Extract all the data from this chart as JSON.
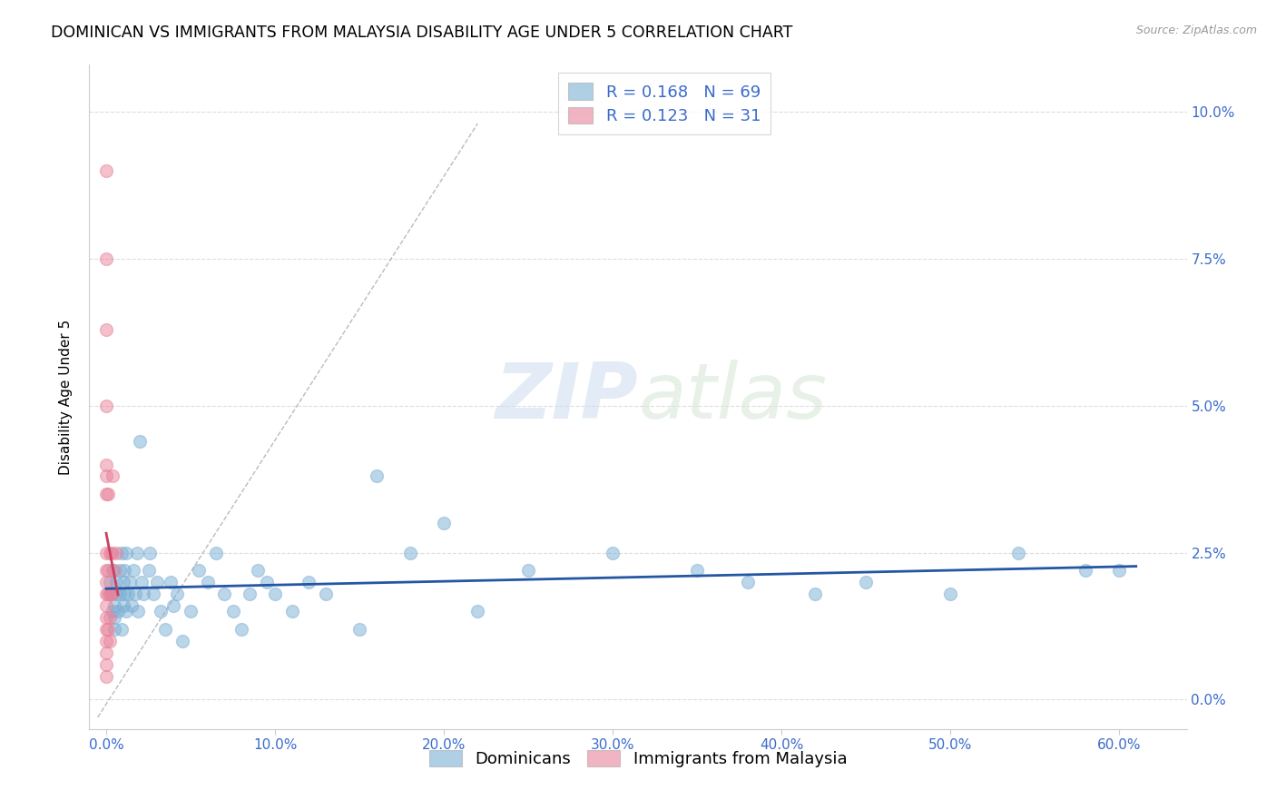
{
  "title": "DOMINICAN VS IMMIGRANTS FROM MALAYSIA DISABILITY AGE UNDER 5 CORRELATION CHART",
  "source": "Source: ZipAtlas.com",
  "ylabel": "Disability Age Under 5",
  "xlabel_vals": [
    0.0,
    0.1,
    0.2,
    0.3,
    0.4,
    0.5,
    0.6
  ],
  "ylabel_vals": [
    0.0,
    0.025,
    0.05,
    0.075,
    0.1
  ],
  "xlim": [
    -0.01,
    0.64
  ],
  "ylim": [
    -0.005,
    0.108
  ],
  "blue_scatter_color": "#7bafd4",
  "pink_scatter_color": "#e8829a",
  "blue_line_color": "#2456a4",
  "pink_line_color": "#c94060",
  "tick_color": "#3a6bcc",
  "R_blue": 0.168,
  "N_blue": 69,
  "R_pink": 0.123,
  "N_pink": 31,
  "legend_label_blue": "Dominicans",
  "legend_label_pink": "Immigrants from Malaysia",
  "blue_x": [
    0.002,
    0.003,
    0.004,
    0.004,
    0.005,
    0.005,
    0.005,
    0.006,
    0.006,
    0.007,
    0.008,
    0.008,
    0.009,
    0.009,
    0.01,
    0.01,
    0.011,
    0.011,
    0.012,
    0.012,
    0.013,
    0.014,
    0.015,
    0.016,
    0.017,
    0.018,
    0.019,
    0.02,
    0.021,
    0.022,
    0.025,
    0.026,
    0.028,
    0.03,
    0.032,
    0.035,
    0.038,
    0.04,
    0.042,
    0.045,
    0.05,
    0.055,
    0.06,
    0.065,
    0.07,
    0.075,
    0.08,
    0.085,
    0.09,
    0.095,
    0.1,
    0.11,
    0.12,
    0.13,
    0.15,
    0.16,
    0.18,
    0.2,
    0.22,
    0.25,
    0.3,
    0.35,
    0.38,
    0.42,
    0.45,
    0.5,
    0.54,
    0.58,
    0.6
  ],
  "blue_y": [
    0.02,
    0.018,
    0.022,
    0.015,
    0.016,
    0.014,
    0.012,
    0.018,
    0.02,
    0.015,
    0.022,
    0.018,
    0.025,
    0.012,
    0.02,
    0.016,
    0.022,
    0.018,
    0.025,
    0.015,
    0.018,
    0.02,
    0.016,
    0.022,
    0.018,
    0.025,
    0.015,
    0.044,
    0.02,
    0.018,
    0.022,
    0.025,
    0.018,
    0.02,
    0.015,
    0.012,
    0.02,
    0.016,
    0.018,
    0.01,
    0.015,
    0.022,
    0.02,
    0.025,
    0.018,
    0.015,
    0.012,
    0.018,
    0.022,
    0.02,
    0.018,
    0.015,
    0.02,
    0.018,
    0.012,
    0.038,
    0.025,
    0.03,
    0.015,
    0.022,
    0.025,
    0.022,
    0.02,
    0.018,
    0.02,
    0.018,
    0.025,
    0.022,
    0.022
  ],
  "pink_x": [
    0.0,
    0.0,
    0.0,
    0.0,
    0.0,
    0.0,
    0.0,
    0.0,
    0.0,
    0.0,
    0.0,
    0.0,
    0.0,
    0.0,
    0.0,
    0.0,
    0.0,
    0.0,
    0.001,
    0.001,
    0.001,
    0.001,
    0.002,
    0.002,
    0.002,
    0.002,
    0.003,
    0.003,
    0.004,
    0.005,
    0.006
  ],
  "pink_y": [
    0.09,
    0.075,
    0.063,
    0.05,
    0.04,
    0.038,
    0.035,
    0.025,
    0.022,
    0.02,
    0.018,
    0.016,
    0.014,
    0.012,
    0.01,
    0.008,
    0.006,
    0.004,
    0.035,
    0.022,
    0.018,
    0.012,
    0.025,
    0.018,
    0.014,
    0.01,
    0.025,
    0.018,
    0.038,
    0.022,
    0.025
  ],
  "watermark_zip": "ZIP",
  "watermark_atlas": "atlas",
  "title_fontsize": 12.5,
  "axis_label_fontsize": 11,
  "tick_fontsize": 11,
  "legend_fontsize": 13
}
